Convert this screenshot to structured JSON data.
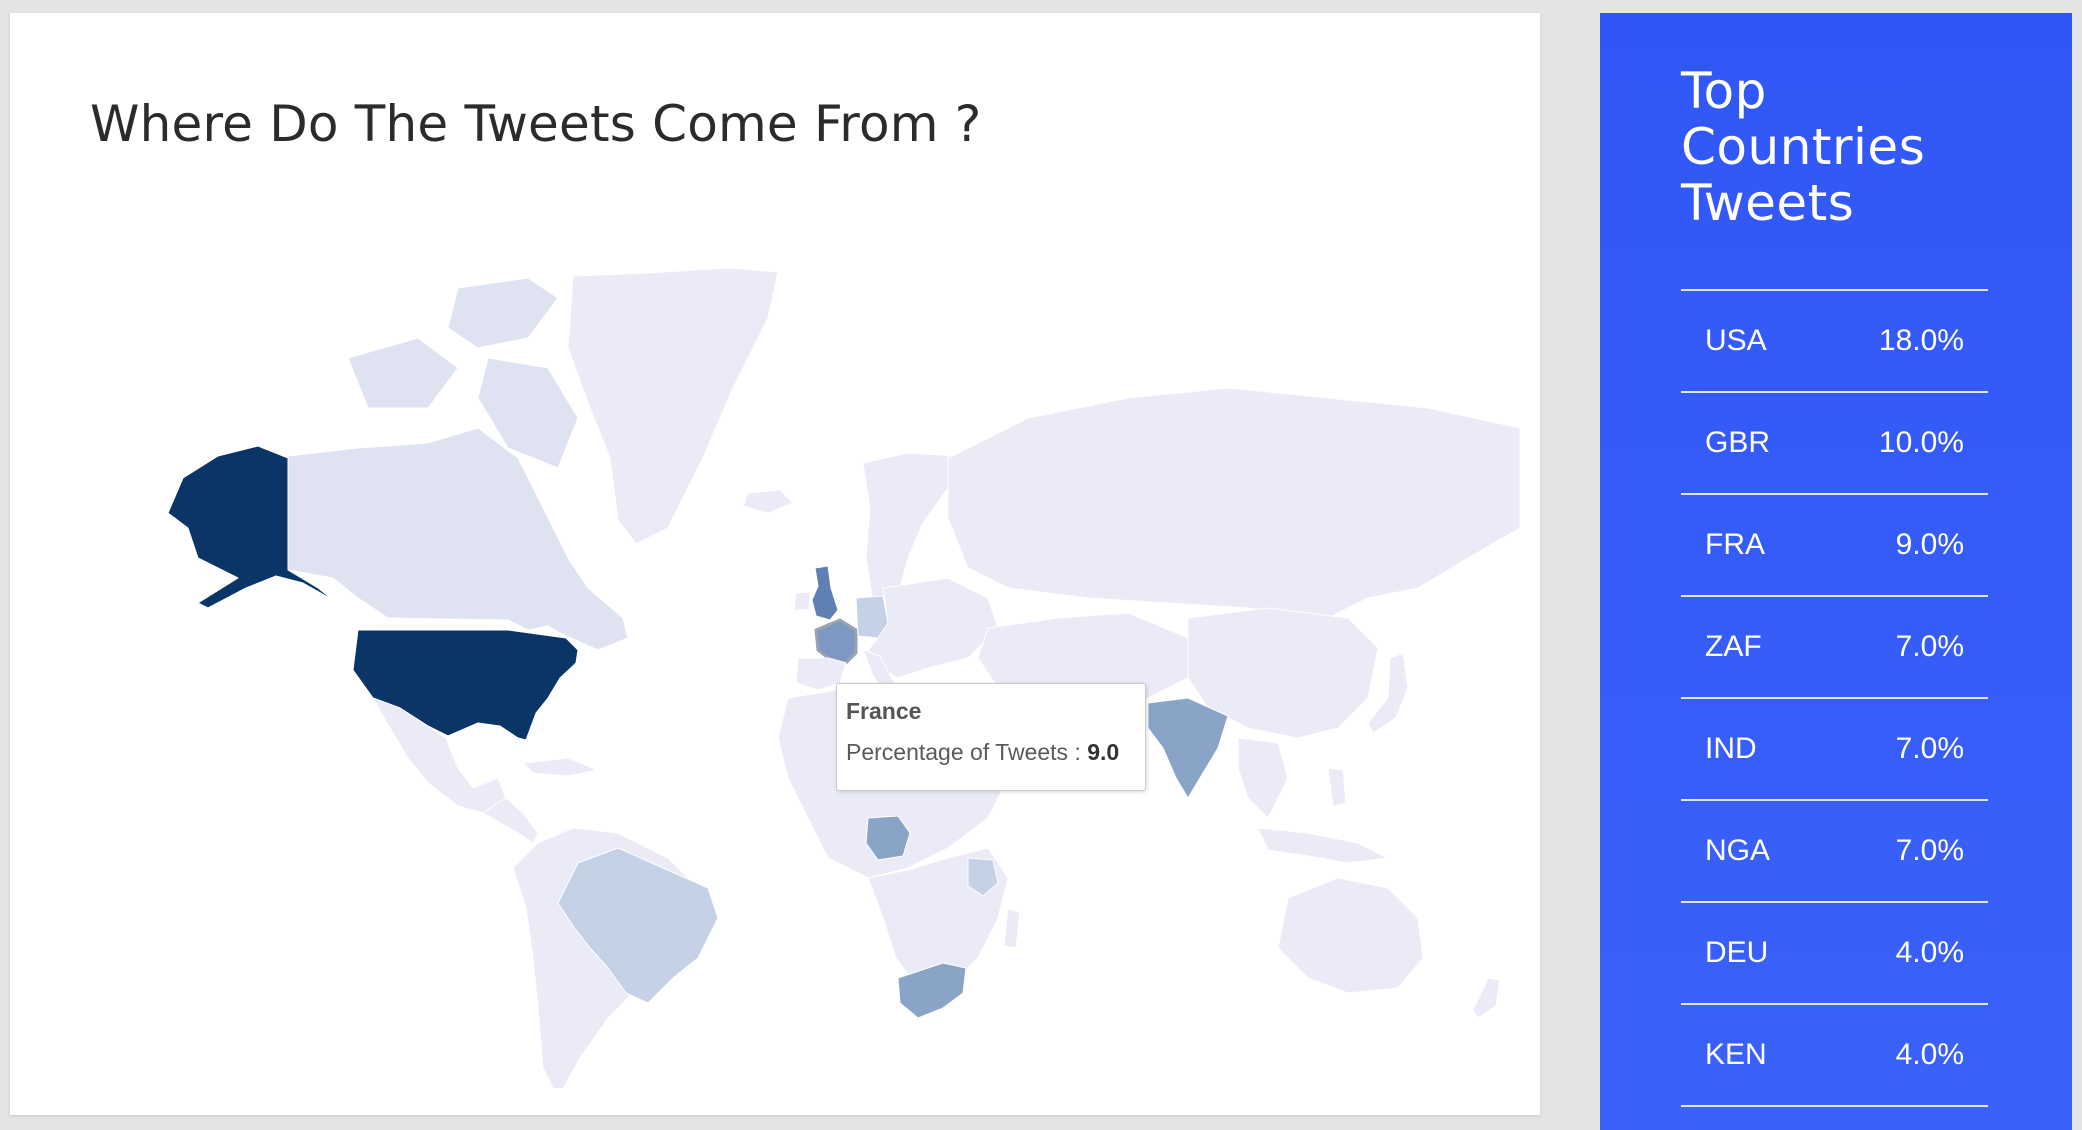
{
  "map_card": {
    "title": "Where Do The Tweets Come From ?"
  },
  "map": {
    "colors": {
      "base": "#eaebf7",
      "border": "#ffffff",
      "usa": "#0b3566",
      "gbr": "#5f80b3",
      "fra": "#7d98c3",
      "fra_outline": "#9aa3b0",
      "zaf": "#8aa4c8",
      "ind": "#8aa4c8",
      "nga": "#8aa4c8",
      "deu": "#c4d1e6",
      "ken": "#c4d1e6",
      "bra": "#c4d1e6",
      "can": "#dfe3f1"
    }
  },
  "tooltip": {
    "country": "France",
    "metric_label": "Percentage of Tweets : ",
    "metric_value": "9.0"
  },
  "side_panel": {
    "title": "Top Countries Tweets",
    "rows": [
      {
        "code": "USA",
        "value": "18.0%"
      },
      {
        "code": "GBR",
        "value": "10.0%"
      },
      {
        "code": "FRA",
        "value": "9.0%"
      },
      {
        "code": "ZAF",
        "value": "7.0%"
      },
      {
        "code": "IND",
        "value": "7.0%"
      },
      {
        "code": "NGA",
        "value": "7.0%"
      },
      {
        "code": "DEU",
        "value": "4.0%"
      },
      {
        "code": "KEN",
        "value": "4.0%"
      }
    ]
  }
}
